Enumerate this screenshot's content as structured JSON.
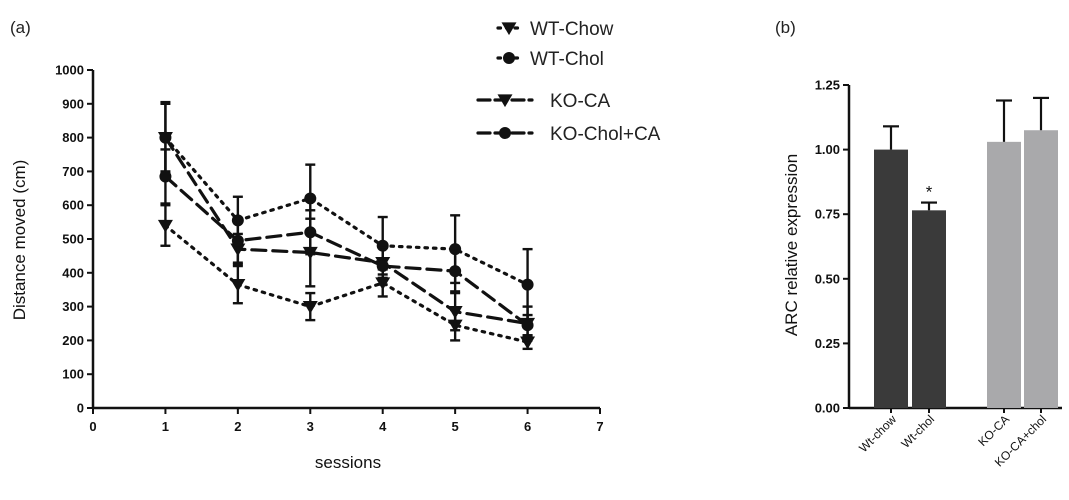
{
  "chart_data": [
    {
      "panel": "(a)",
      "type": "line",
      "xlabel": "sessions",
      "ylabel": "Distance moved (cm)",
      "xlim": [
        0,
        7
      ],
      "ylim": [
        0,
        1000
      ],
      "xticks": [
        "0",
        "1",
        "2",
        "3",
        "4",
        "5",
        "6",
        "7"
      ],
      "yticks": [
        "0",
        "100",
        "200",
        "300",
        "400",
        "500",
        "600",
        "700",
        "800",
        "900",
        "1000"
      ],
      "legend_position": "top-right",
      "x": [
        1,
        2,
        3,
        4,
        5,
        6
      ],
      "series": [
        {
          "name": "WT-Chow",
          "marker": "triangle-down",
          "line": "dotted",
          "values": [
            540,
            365,
            300,
            370,
            245,
            195
          ],
          "errors": [
            60,
            55,
            40,
            40,
            45,
            20
          ]
        },
        {
          "name": "WT-Chol",
          "marker": "circle",
          "line": "dotted",
          "values": [
            800,
            555,
            620,
            480,
            470,
            365
          ],
          "errors": [
            105,
            70,
            100,
            85,
            100,
            105
          ]
        },
        {
          "name": "KO-CA",
          "marker": "triangle-down",
          "line": "dashed",
          "values": [
            800,
            470,
            460,
            430,
            285,
            250
          ],
          "errors": [
            100,
            45,
            100,
            45,
            55,
            50
          ]
        },
        {
          "name": "KO-Chol+CA",
          "marker": "circle",
          "line": "dashed",
          "values": [
            685,
            495,
            520,
            420,
            405,
            245
          ],
          "errors": [
            80,
            65,
            65,
            55,
            60,
            30
          ]
        }
      ]
    },
    {
      "panel": "(b)",
      "type": "bar",
      "ylabel": "ARC relative expression",
      "ylim": [
        0,
        1.25
      ],
      "yticks": [
        "0.00",
        "0.25",
        "0.50",
        "0.75",
        "1.00",
        "1.25"
      ],
      "categories": [
        "Wt-chow",
        "Wt-chol",
        "KO-CA",
        "KO-CA+chol"
      ],
      "values": [
        1.0,
        0.765,
        1.03,
        1.075
      ],
      "errors": [
        0.09,
        0.03,
        0.16,
        0.125
      ],
      "colors": [
        "#3a3a3a",
        "#3a3a3a",
        "#a9a9ab",
        "#a9a9ab"
      ],
      "annotation": "*"
    }
  ]
}
